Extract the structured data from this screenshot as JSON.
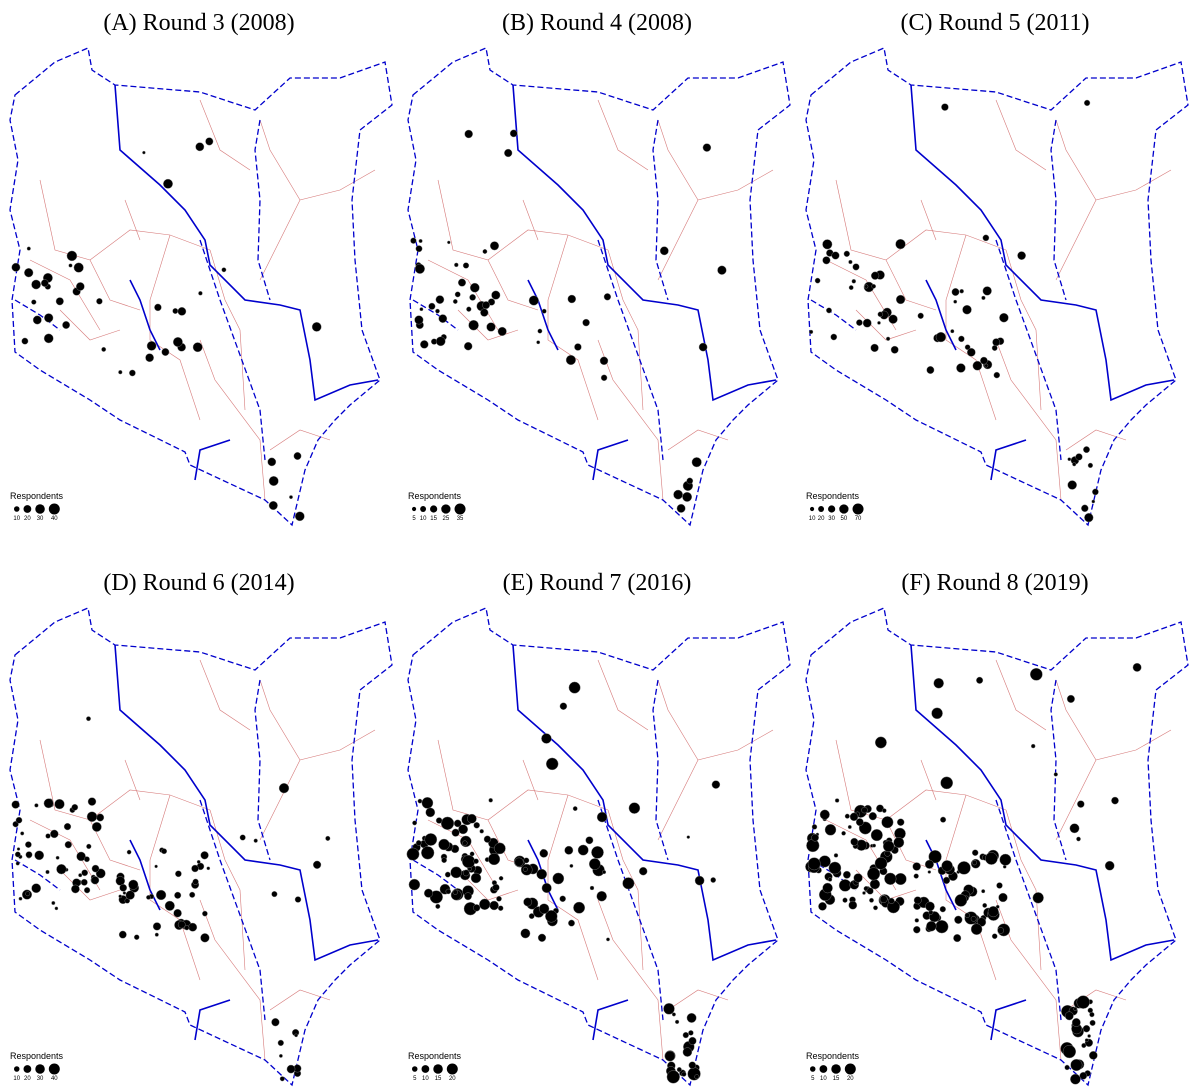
{
  "panels": [
    {
      "caption": "(A) Round 3 (2008)",
      "legend": {
        "title": "Respondents",
        "values": [
          10,
          20,
          30,
          40
        ]
      }
    },
    {
      "caption": "(B) Round 4 (2008)",
      "legend": {
        "title": "Respondents",
        "values": [
          5,
          10,
          15,
          25,
          35
        ]
      }
    },
    {
      "caption": "(C) Round 5 (2011)",
      "legend": {
        "title": "Respondents",
        "values": [
          10,
          20,
          30,
          50,
          70
        ]
      }
    },
    {
      "caption": "(D) Round 6 (2014)",
      "legend": {
        "title": "Respondents",
        "values": [
          10,
          20,
          30,
          40
        ]
      }
    },
    {
      "caption": "(E) Round 7 (2016)",
      "legend": {
        "title": "Respondents",
        "values": [
          5,
          10,
          15,
          20
        ]
      }
    },
    {
      "caption": "(F) Round 8 (2019)",
      "legend": {
        "title": "Respondents",
        "values": [
          5,
          10,
          15,
          20
        ]
      }
    }
  ]
}
